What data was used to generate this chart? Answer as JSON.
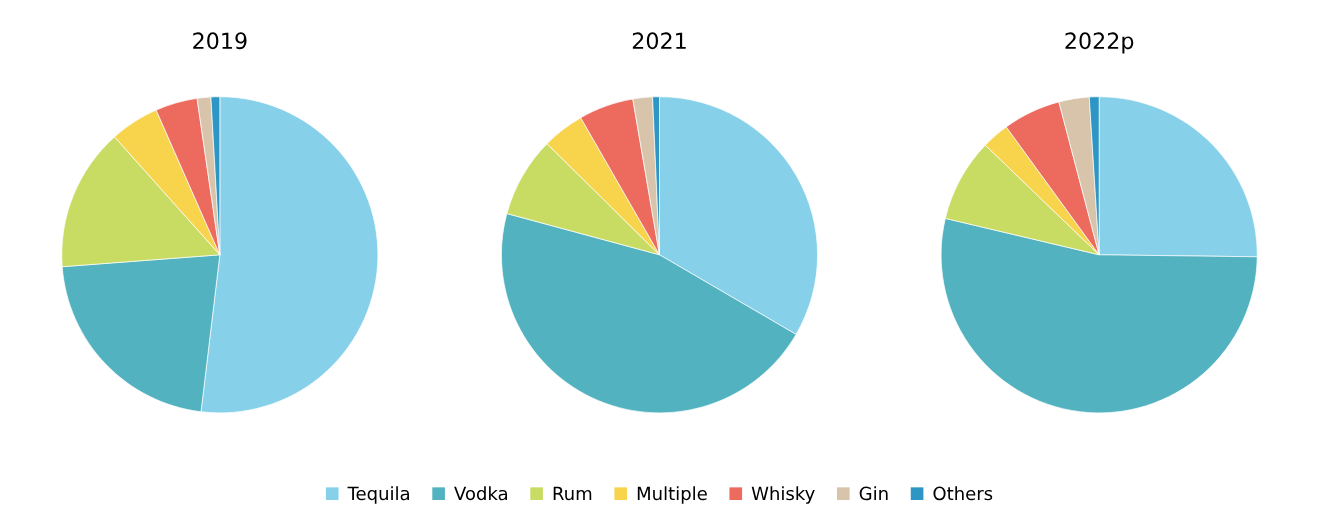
{
  "chart_data": [
    {
      "type": "pie",
      "title": "2019",
      "categories": [
        "Tequila",
        "Vodka",
        "Rum",
        "Multiple",
        "Whisky",
        "Gin",
        "Others"
      ],
      "values": [
        51.9,
        21.9,
        14.6,
        5.0,
        4.3,
        1.4,
        0.9
      ],
      "colors": [
        "#87d0ea",
        "#52b2c0",
        "#c8dc64",
        "#f8d44c",
        "#ec6b5e",
        "#d7c4aa",
        "#2e96c4"
      ],
      "legend": "bottom"
    },
    {
      "type": "pie",
      "title": "2021",
      "categories": [
        null,
        null,
        null,
        null,
        null,
        null,
        null
      ],
      "values": [
        33.4,
        45.8,
        8.2,
        4.3,
        5.6,
        2.0,
        0.7
      ],
      "colors": [
        "#87d0ea",
        "#52b2c0",
        "#c8dc64",
        "#f8d44c",
        "#ec6b5e",
        "#d7c4aa",
        "#2e96c4"
      ]
    },
    {
      "type": "pie",
      "title": "2022p",
      "categories": [
        null,
        null,
        null,
        null,
        null,
        null,
        null
      ],
      "values": [
        25.2,
        53.5,
        8.5,
        2.8,
        5.9,
        3.1,
        1.0
      ],
      "colors": [
        "#87d0ea",
        "#52b2c0",
        "#c8dc64",
        "#f8d44c",
        "#ec6b5e",
        "#d7c4aa",
        "#2e96c4"
      ]
    }
  ]
}
